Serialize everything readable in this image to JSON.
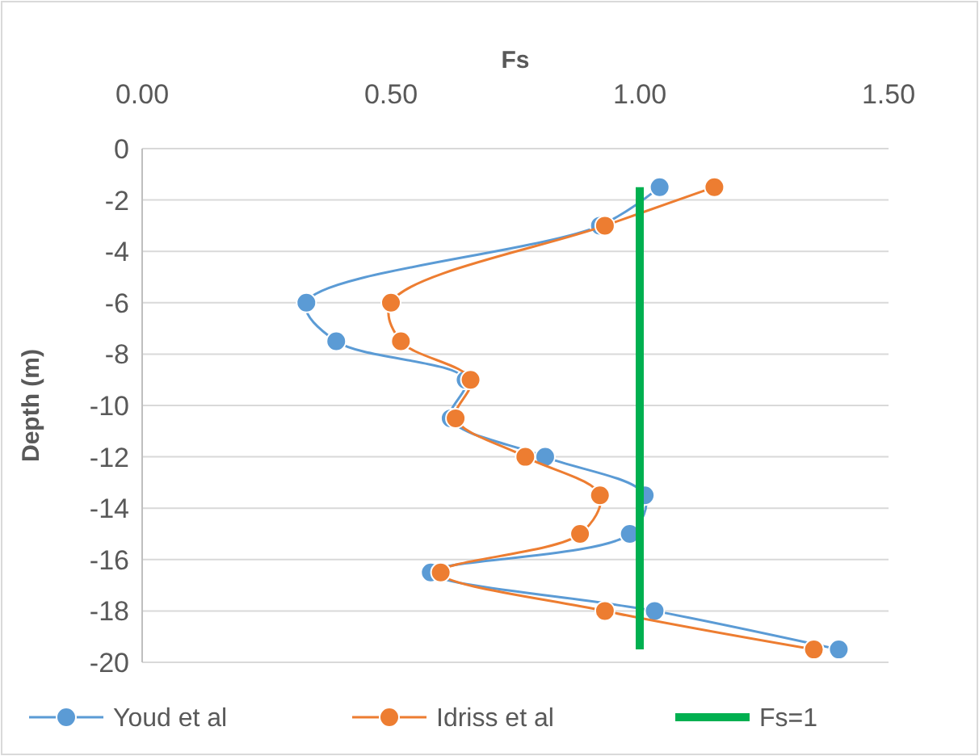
{
  "chart_data": {
    "type": "line",
    "xlabel": "Fs",
    "ylabel": "Depth (m)",
    "xlim": [
      0,
      1.5
    ],
    "xticks": [
      {
        "value": 0,
        "label": "0.00"
      },
      {
        "value": 0.5,
        "label": "0.50"
      },
      {
        "value": 1,
        "label": "1.00"
      },
      {
        "value": 1.5,
        "label": "1.50"
      }
    ],
    "ylim": [
      -20,
      0
    ],
    "yticks": [
      0,
      -2,
      -4,
      -6,
      -8,
      -10,
      -12,
      -14,
      -16,
      -18,
      -20
    ],
    "grid": "y",
    "legend": "bottom",
    "marker": "circle",
    "line_style": "solid",
    "series": [
      {
        "name": "Youd et al",
        "color": "#5b9bd5",
        "x": [
          1.04,
          0.92,
          0.33,
          0.39,
          0.65,
          0.62,
          0.81,
          1.01,
          0.98,
          0.58,
          1.03,
          1.4
        ],
        "values": [
          -1.5,
          -3,
          -6,
          -7.5,
          -9,
          -10.5,
          -12,
          -13.5,
          -15,
          -16.5,
          -18,
          -19.5
        ]
      },
      {
        "name": "Idriss et al",
        "color": "#ed7d31",
        "x": [
          1.15,
          0.93,
          0.5,
          0.52,
          0.66,
          0.63,
          0.77,
          0.92,
          0.88,
          0.6,
          0.93,
          1.35
        ],
        "values": [
          -1.5,
          -3,
          -6,
          -7.5,
          -9,
          -10.5,
          -12,
          -13.5,
          -15,
          -16.5,
          -18,
          -19.5
        ]
      },
      {
        "name": "Fs=1",
        "color": "#00b050",
        "type": "line",
        "marker": "none",
        "x": [
          1,
          1
        ],
        "values": [
          -1.5,
          -19.5
        ]
      }
    ]
  }
}
